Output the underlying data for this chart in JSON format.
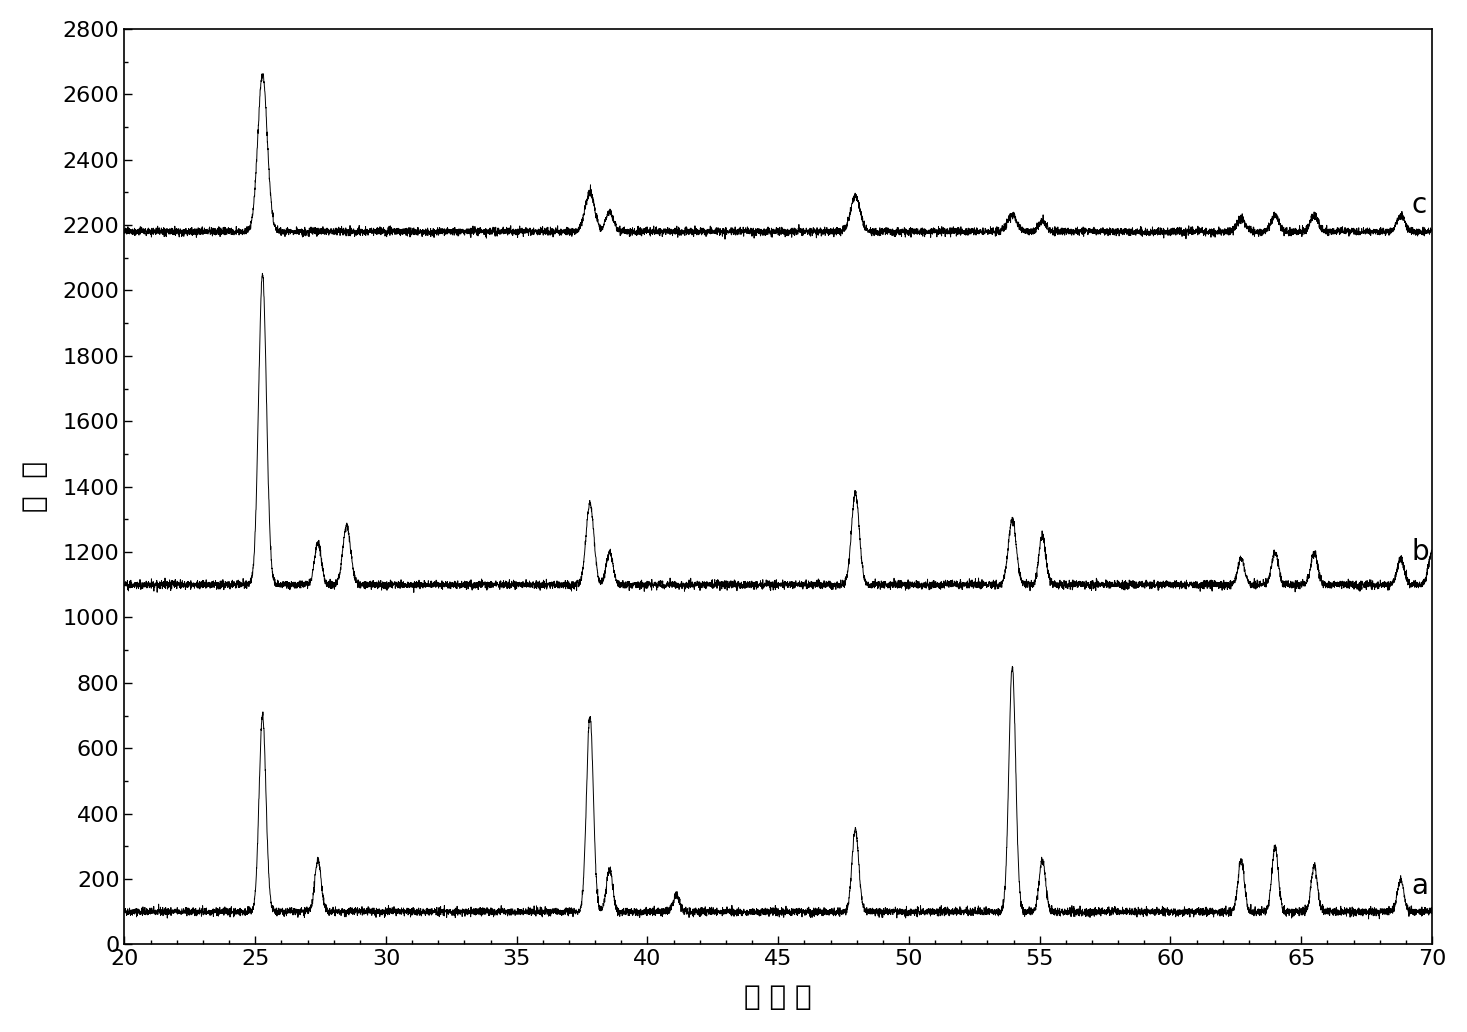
{
  "xlabel": "衍 射 角",
  "ylabel": "强  度",
  "xlim": [
    20,
    70
  ],
  "ylim": [
    0,
    2800
  ],
  "yticks": [
    0,
    200,
    400,
    600,
    800,
    1000,
    1200,
    1400,
    1600,
    1800,
    2000,
    2200,
    2400,
    2600,
    2800
  ],
  "xticks": [
    20,
    25,
    30,
    35,
    40,
    45,
    50,
    55,
    60,
    65,
    70
  ],
  "curve_labels": [
    "a",
    "b",
    "c"
  ],
  "curve_offsets": [
    100,
    1100,
    2180
  ],
  "line_color": "#000000",
  "bg_color": "#ffffff",
  "label_fontsize": 20,
  "tick_fontsize": 16,
  "peaks_a": {
    "positions": [
      25.28,
      27.4,
      37.8,
      38.55,
      41.1,
      47.95,
      53.95,
      55.1,
      62.7,
      64.0,
      65.5,
      68.8
    ],
    "heights": [
      600,
      160,
      600,
      130,
      50,
      250,
      750,
      160,
      160,
      200,
      140,
      100
    ],
    "widths": [
      0.13,
      0.12,
      0.13,
      0.12,
      0.12,
      0.13,
      0.13,
      0.12,
      0.12,
      0.12,
      0.12,
      0.12
    ]
  },
  "peaks_b": {
    "positions": [
      25.28,
      27.4,
      28.5,
      37.8,
      38.55,
      47.95,
      53.95,
      55.1,
      62.7,
      64.0,
      65.5,
      68.8,
      70.0
    ],
    "heights": [
      950,
      130,
      180,
      250,
      100,
      280,
      200,
      150,
      80,
      100,
      100,
      80,
      100
    ],
    "widths": [
      0.15,
      0.13,
      0.15,
      0.15,
      0.13,
      0.15,
      0.15,
      0.13,
      0.13,
      0.13,
      0.13,
      0.13,
      0.13
    ]
  },
  "peaks_c": {
    "positions": [
      25.28,
      37.8,
      38.55,
      47.95,
      53.95,
      55.1,
      62.7,
      64.0,
      65.5,
      68.8
    ],
    "heights": [
      480,
      120,
      60,
      110,
      50,
      30,
      40,
      50,
      50,
      50
    ],
    "widths": [
      0.18,
      0.18,
      0.15,
      0.18,
      0.18,
      0.15,
      0.15,
      0.15,
      0.15,
      0.15
    ]
  },
  "noise_amplitude": 6,
  "seed": 42
}
